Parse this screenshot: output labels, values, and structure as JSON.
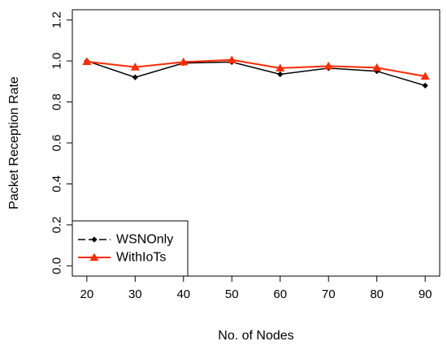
{
  "chart_data": {
    "type": "line",
    "title": "",
    "xlabel": "No. of Nodes",
    "ylabel": "Packet Reception Rate",
    "x": [
      20,
      30,
      40,
      50,
      60,
      70,
      80,
      90
    ],
    "xlim": [
      17,
      93
    ],
    "ylim": [
      -0.05,
      1.25
    ],
    "xticks": [
      "20",
      "30",
      "40",
      "50",
      "60",
      "70",
      "80",
      "90"
    ],
    "yticks": [
      "0.0",
      "0.2",
      "0.4",
      "0.6",
      "0.8",
      "1.0",
      "1.2"
    ],
    "grid": false,
    "legend_position": "bottom-left",
    "series": [
      {
        "name": "WSNOnly",
        "values": [
          1.0,
          0.92,
          0.99,
          0.995,
          0.935,
          0.965,
          0.95,
          0.88
        ],
        "color": "#000000",
        "marker": "diamond"
      },
      {
        "name": "WithIoTs",
        "values": [
          0.997,
          0.97,
          0.995,
          1.005,
          0.965,
          0.975,
          0.967,
          0.925
        ],
        "color": "#ff2a00",
        "marker": "triangle"
      }
    ]
  }
}
